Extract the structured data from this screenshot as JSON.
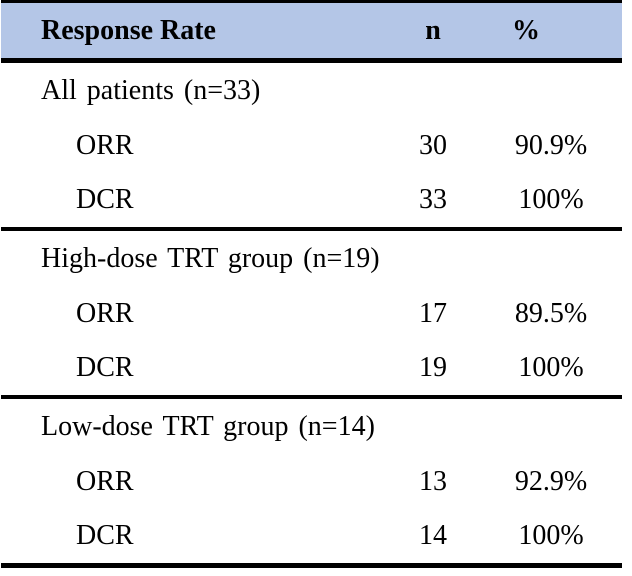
{
  "colors": {
    "header_bg": "#b4c6e7",
    "border": "#000000",
    "text": "#000000",
    "page_bg": "#ffffff"
  },
  "table": {
    "header": {
      "response_rate": "Response Rate",
      "n": "n",
      "pct": "%"
    },
    "sections": [
      {
        "title": "All patients (n=33)",
        "rows": [
          {
            "label": "ORR",
            "n": "30",
            "pct": "90.9%"
          },
          {
            "label": "DCR",
            "n": "33",
            "pct": "100%"
          }
        ]
      },
      {
        "title": "High-dose TRT group (n=19)",
        "rows": [
          {
            "label": "ORR",
            "n": "17",
            "pct": "89.5%"
          },
          {
            "label": "DCR",
            "n": "19",
            "pct": "100%"
          }
        ]
      },
      {
        "title": "Low-dose TRT group (n=14)",
        "rows": [
          {
            "label": "ORR",
            "n": "13",
            "pct": "92.9%"
          },
          {
            "label": "DCR",
            "n": "14",
            "pct": "100%"
          }
        ]
      }
    ]
  }
}
